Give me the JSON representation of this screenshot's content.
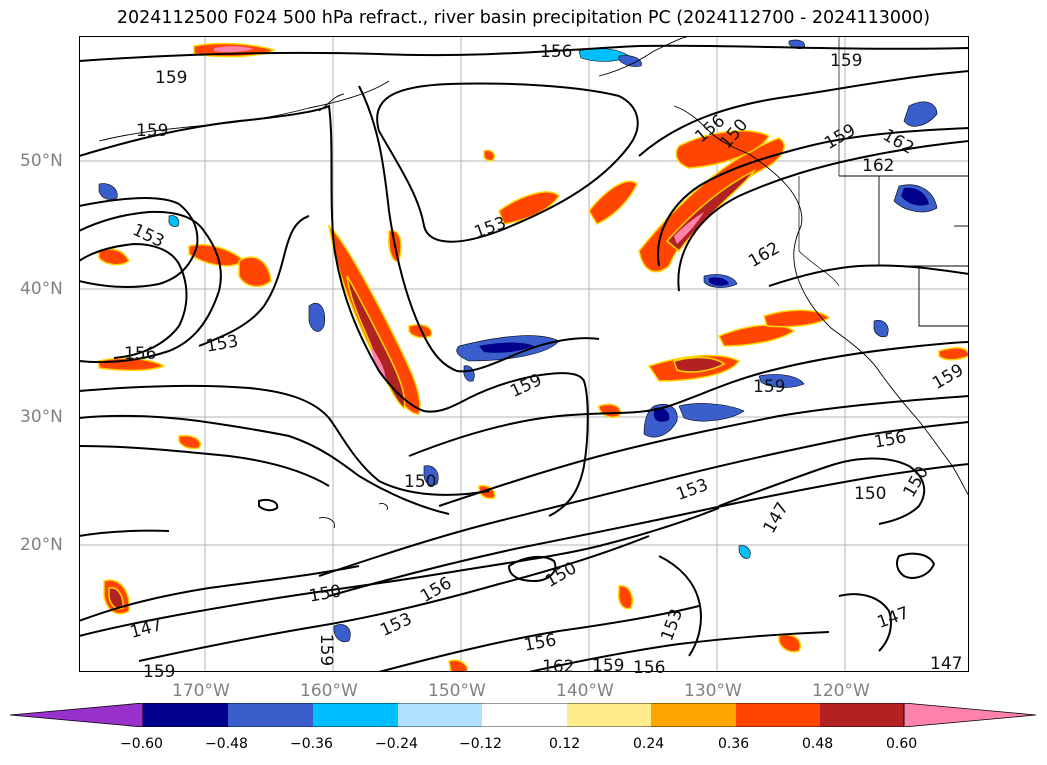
{
  "title": "2024112500 F024 500 hPa refract., river basin precipitation PC (2024112700 - 2024113000)",
  "lat_labels": [
    "50°N",
    "40°N",
    "30°N",
    "20°N"
  ],
  "lon_labels": [
    "170°W",
    "160°W",
    "150°W",
    "140°W",
    "130°W",
    "120°W"
  ],
  "colorbar": {
    "ticks": [
      "−0.60",
      "−0.48",
      "−0.36",
      "−0.24",
      "−0.12",
      "0.12",
      "0.24",
      "0.36",
      "0.48",
      "0.60"
    ],
    "colors": [
      "#9932cc",
      "#00008b",
      "#3a5fcd",
      "#00bfff",
      "#b0e2ff",
      "#ffffff",
      "#ffec8b",
      "#ffa500",
      "#ff4500",
      "#b22222",
      "#ff82ab"
    ]
  },
  "contour_labels": [
    "159",
    "156",
    "159",
    "159",
    "153",
    "156",
    "150",
    "153",
    "159",
    "159",
    "159",
    "162",
    "162",
    "162",
    "153",
    "159",
    "156",
    "150",
    "150",
    "150",
    "147",
    "147",
    "147",
    "147",
    "150",
    "156",
    "153",
    "153",
    "156",
    "162",
    "159",
    "156",
    "159",
    "156",
    "153",
    "150",
    "159"
  ]
}
